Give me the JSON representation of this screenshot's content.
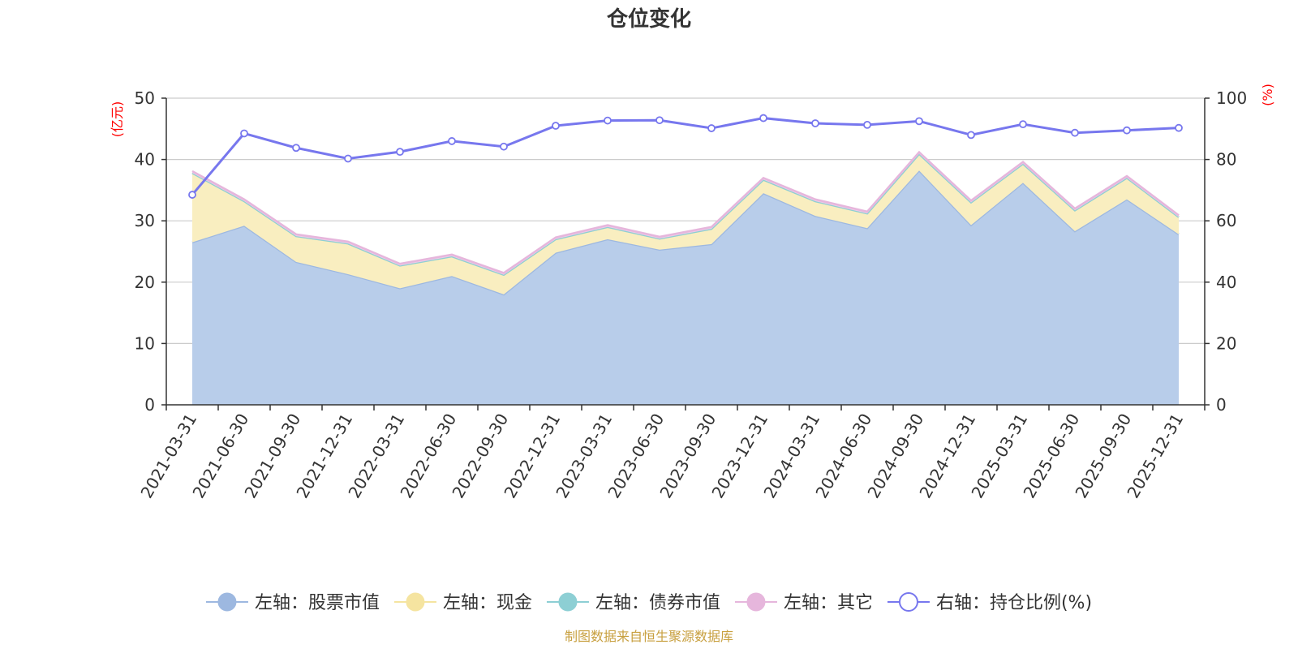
{
  "chart_data": {
    "type": "area",
    "title": "仓位变化",
    "left_unit": "(亿元)",
    "right_unit": "(%)",
    "left_ylim": [
      0,
      50
    ],
    "left_yticks": [
      0,
      10,
      20,
      30,
      40,
      50
    ],
    "right_ylim": [
      0,
      100
    ],
    "right_yticks": [
      0,
      20,
      40,
      60,
      80,
      100
    ],
    "grid": true,
    "legend_position": "bottom",
    "categories": [
      "2021-03-31",
      "2021-06-30",
      "2021-09-30",
      "2021-12-31",
      "2022-03-31",
      "2022-06-30",
      "2022-09-30",
      "2022-12-31",
      "2023-03-31",
      "2023-06-30",
      "2023-09-30",
      "2023-12-31",
      "2024-03-31",
      "2024-06-30",
      "2024-09-30",
      "2024-12-31",
      "2025-03-31",
      "2025-06-30",
      "2025-09-30",
      "2025-12-31"
    ],
    "series": [
      {
        "name": "左轴：股票市值",
        "axis": "left",
        "kind": "stacked-area",
        "color": "#9db8e0",
        "fill": "#b8cdea",
        "values": [
          26.5,
          29.2,
          23.3,
          21.3,
          19.0,
          21.0,
          18.0,
          24.8,
          27.0,
          25.3,
          26.2,
          34.5,
          30.8,
          28.8,
          38.2,
          29.3,
          36.2,
          28.3,
          33.5,
          27.8
        ]
      },
      {
        "name": "左轴：现金",
        "axis": "left",
        "kind": "stacked-area",
        "color": "#f5e4a0",
        "fill": "#f9eec0",
        "values": [
          11.3,
          4.0,
          4.2,
          5.0,
          3.7,
          3.2,
          3.2,
          2.2,
          2.0,
          1.8,
          2.5,
          2.2,
          2.4,
          2.4,
          2.7,
          3.7,
          3.1,
          3.4,
          3.5,
          2.8
        ]
      },
      {
        "name": "左轴：债券市值",
        "axis": "left",
        "kind": "stacked-area",
        "color": "#8dcfd4",
        "fill": "#a8dade",
        "values": [
          0,
          0,
          0,
          0,
          0,
          0,
          0,
          0,
          0,
          0,
          0,
          0,
          0,
          0,
          0,
          0,
          0,
          0,
          0,
          0
        ]
      },
      {
        "name": "左轴：其它",
        "axis": "left",
        "kind": "stacked-area",
        "color": "#e6b6dc",
        "fill": "#efcbe8",
        "values": [
          0.3,
          0.3,
          0.3,
          0.3,
          0.3,
          0.3,
          0.3,
          0.3,
          0.3,
          0.3,
          0.3,
          0.3,
          0.3,
          0.3,
          0.3,
          0.3,
          0.3,
          0.3,
          0.3,
          0.3
        ]
      },
      {
        "name": "右轴：持仓比例(%)",
        "axis": "right",
        "kind": "line",
        "color": "#7777ee",
        "values": [
          68.5,
          88.5,
          83.8,
          80.3,
          82.5,
          86.0,
          84.2,
          91.0,
          92.7,
          92.8,
          90.2,
          93.5,
          91.8,
          91.3,
          92.5,
          88.0,
          91.5,
          88.7,
          89.5,
          90.3
        ]
      }
    ]
  },
  "source": "制图数据来自恒生聚源数据库"
}
